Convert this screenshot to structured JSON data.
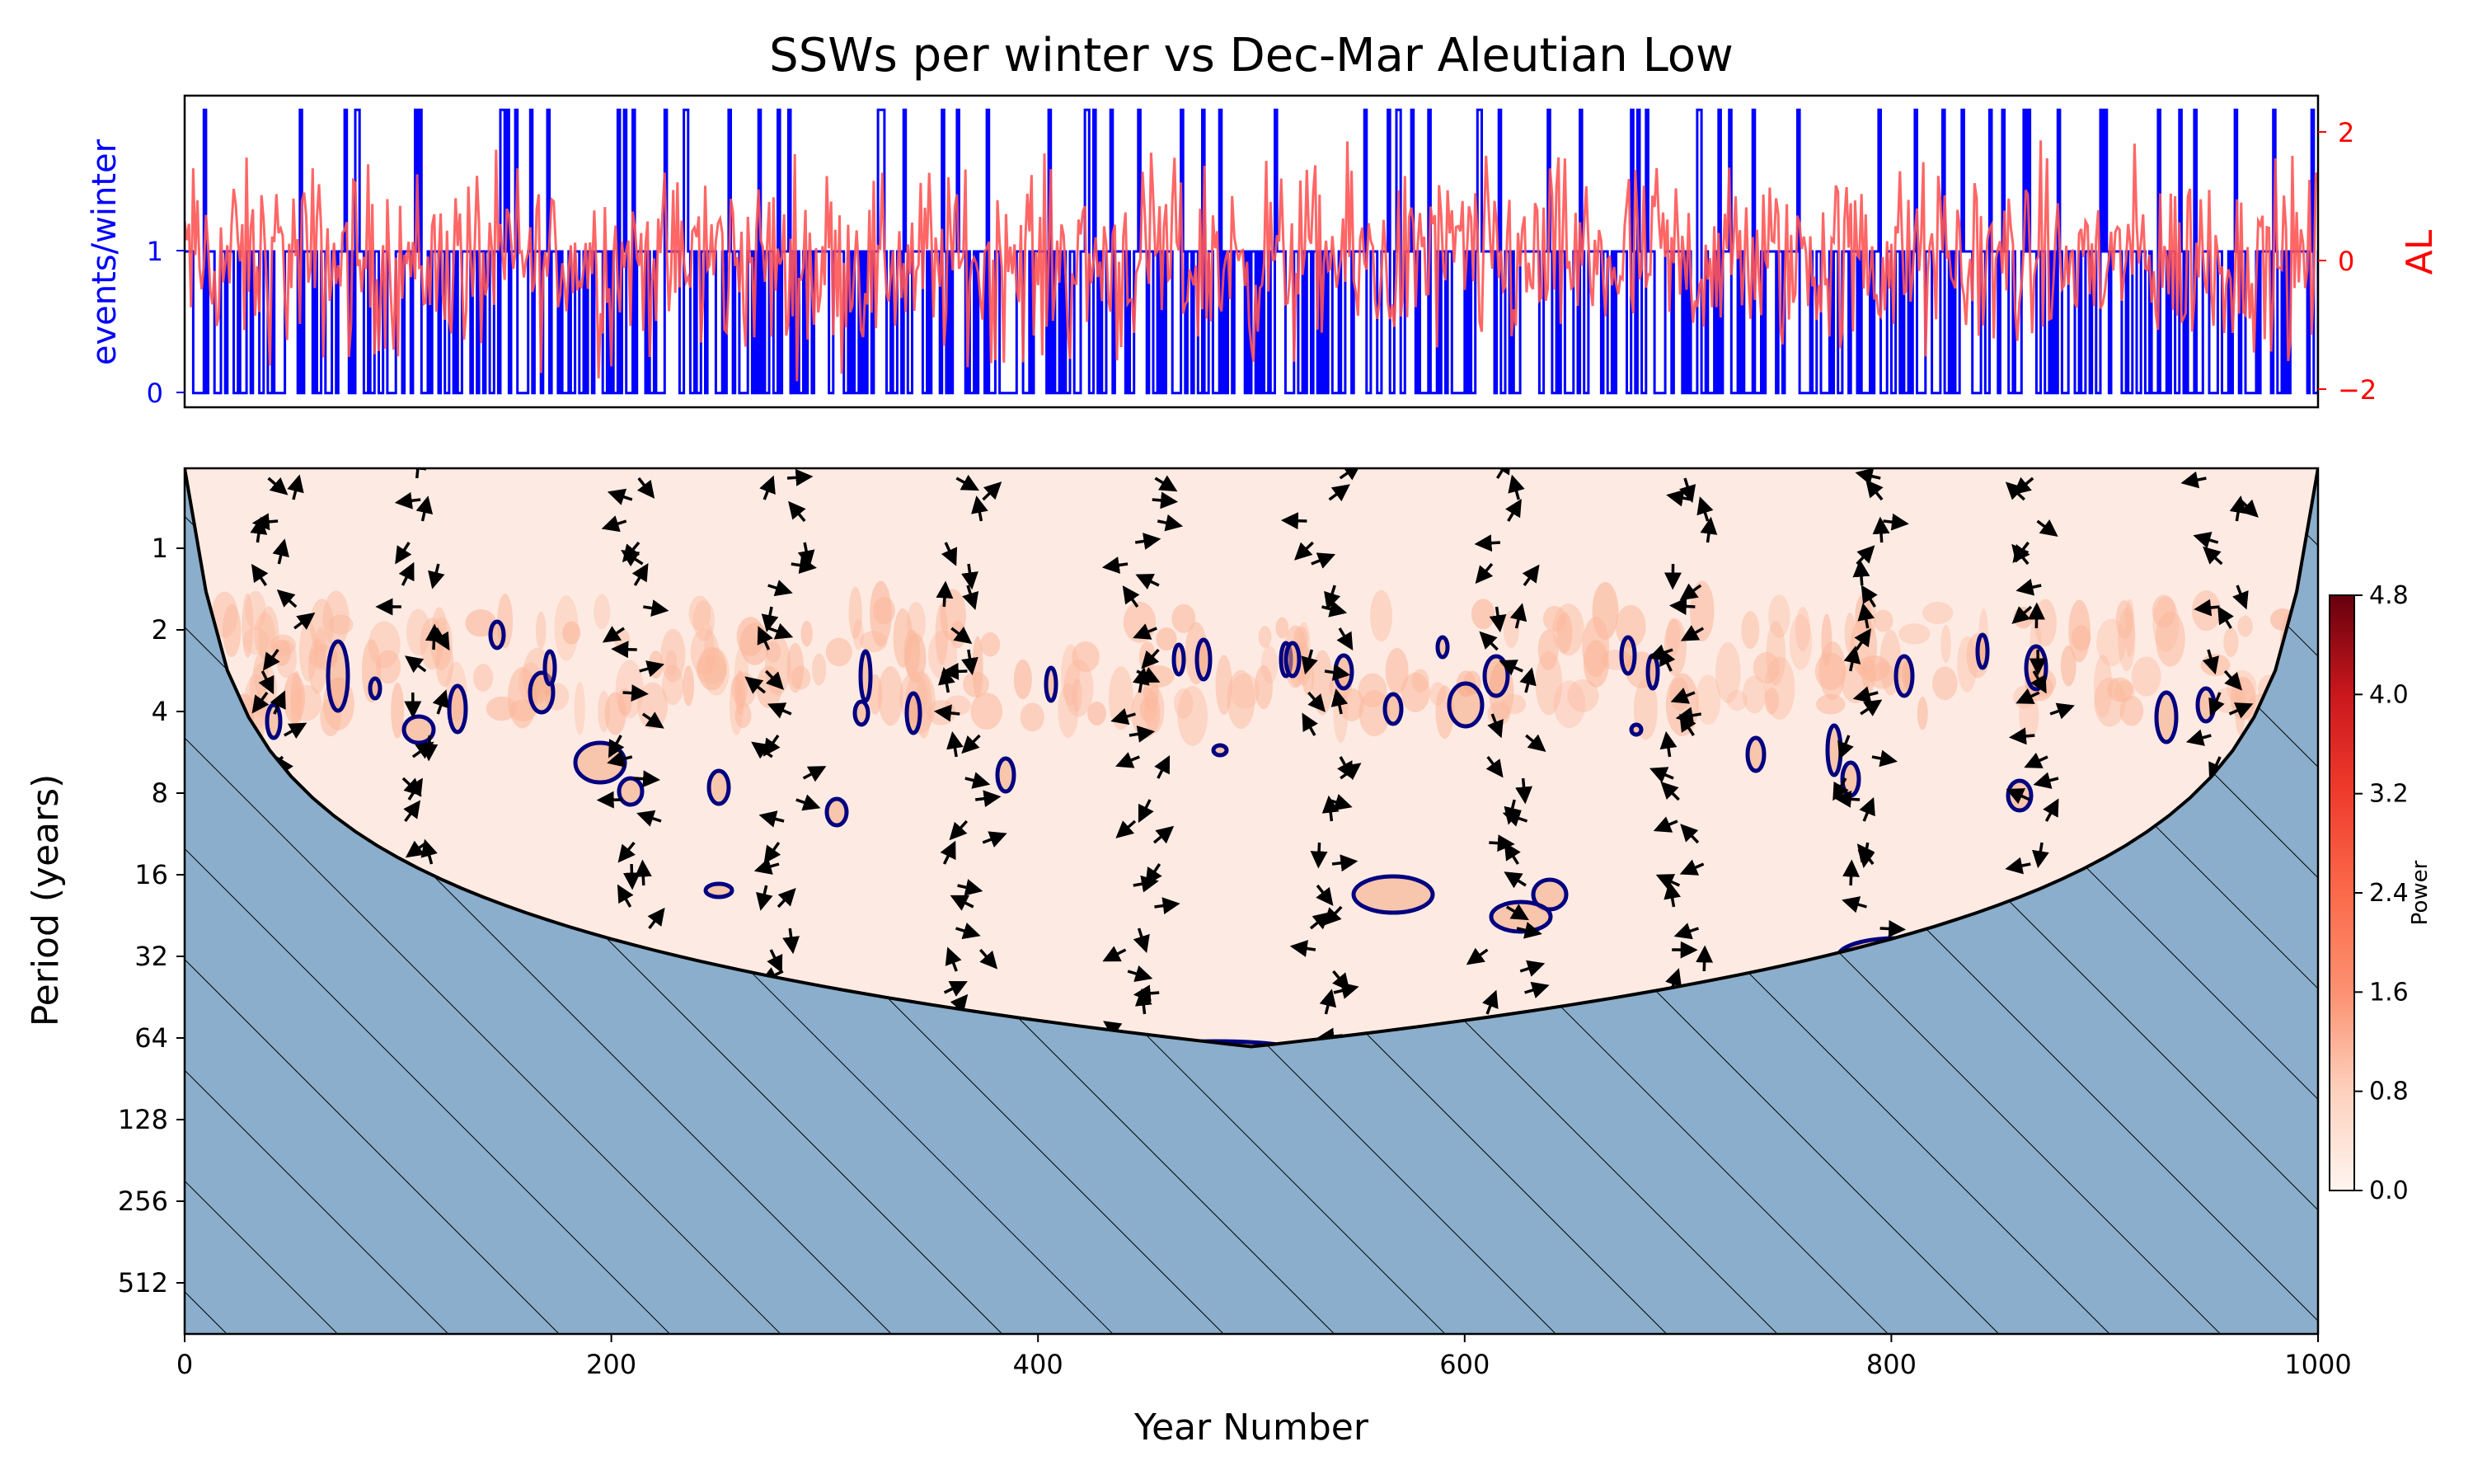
{
  "chart_data": [
    {
      "type": "line",
      "title": "SSWs per winter vs Dec-Mar Aleutian Low",
      "xlim": [
        0,
        1000
      ],
      "series": [
        {
          "axis": "left",
          "ylabel": "events/winter",
          "color": "#0000ff",
          "yticks": [
            "0",
            "1"
          ],
          "ylim": [
            -0.1,
            2.1
          ],
          "description_values": [
            0,
            1,
            2
          ]
        },
        {
          "axis": "right",
          "ylabel": "AL",
          "color": "#ff5555",
          "yticks": [
            "2",
            "0",
            "−2"
          ],
          "ylim": [
            -2.2,
            2.5
          ]
        }
      ]
    },
    {
      "type": "heatmap",
      "xlabel": "Year Number",
      "ylabel": "Period (years)",
      "xticks": [
        "0",
        "200",
        "400",
        "600",
        "800",
        "1000"
      ],
      "xlim": [
        0,
        1000
      ],
      "yticks": [
        "1",
        "2",
        "4",
        "8",
        "16",
        "32",
        "64",
        "128",
        "256",
        "512"
      ],
      "yscale": "log2",
      "colorbar": {
        "label": "Power",
        "ticks": [
          "0.0",
          "0.8",
          "1.6",
          "2.4",
          "3.2",
          "4.0",
          "4.8"
        ],
        "range": [
          0,
          4.8
        ],
        "colormap": "Reds"
      },
      "cone_of_influence_color": "#8aaecb",
      "significance_contour_color": "#000080"
    }
  ]
}
